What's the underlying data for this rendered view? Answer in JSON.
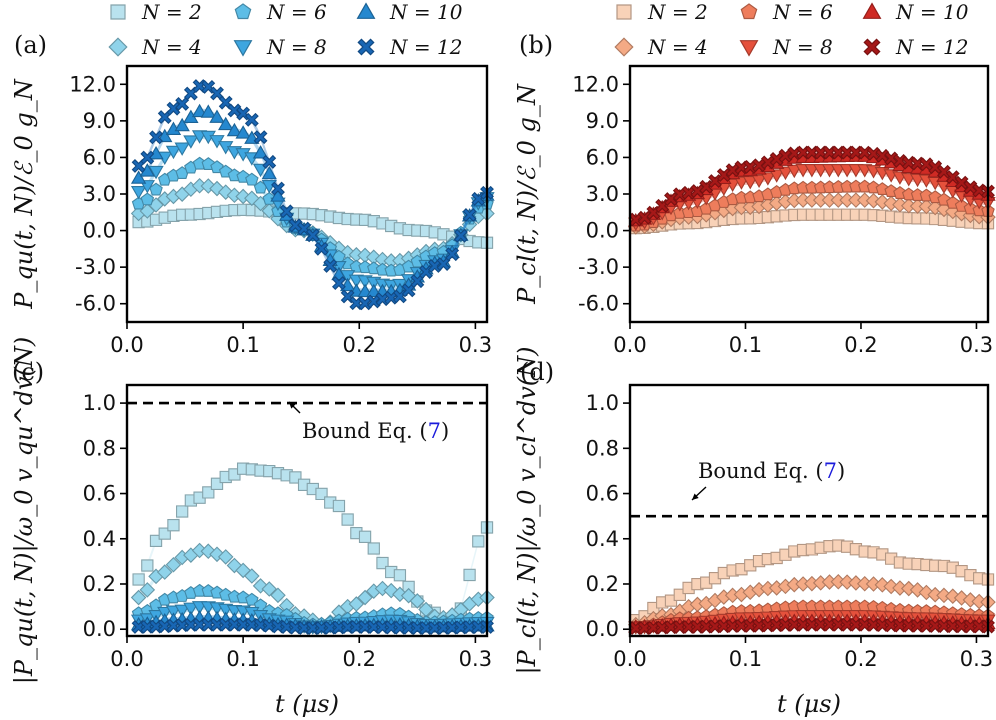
{
  "chart_data": [
    {
      "id": "a",
      "type": "scatter",
      "panel_label": "(a)",
      "ylabel": "P_qu(t, N)/ℰ_0 g_N",
      "xlabel": "",
      "xlim": [
        0,
        0.31
      ],
      "ylim": [
        -7.5,
        13.5
      ],
      "xticks": [
        "0.0",
        "0.1",
        "0.2",
        "0.3"
      ],
      "yticks": [
        "12.0",
        "9.0",
        "6.0",
        "3.0",
        "0.0",
        "-3.0",
        "-6.0"
      ],
      "legend": [
        "N = 2",
        "N = 4",
        "N = 6",
        "N = 8",
        "N = 10",
        "N = 12"
      ],
      "series": [
        {
          "name": "N = 2",
          "marker": "square",
          "color": "#b9e2ee",
          "x": [
            0.01,
            0.05,
            0.1,
            0.15,
            0.2,
            0.25,
            0.31
          ],
          "y": [
            0.7,
            1.3,
            1.7,
            1.4,
            0.9,
            0.0,
            -1.0
          ]
        },
        {
          "name": "N = 4",
          "marker": "diamond",
          "color": "#8fd3ea",
          "x": [
            0.01,
            0.04,
            0.065,
            0.1,
            0.15,
            0.2,
            0.23,
            0.27,
            0.31
          ],
          "y": [
            1.4,
            2.8,
            3.7,
            2.8,
            0.0,
            -2.0,
            -2.5,
            -1.5,
            1.4
          ]
        },
        {
          "name": "N = 6",
          "marker": "pentagon",
          "color": "#5dbde6",
          "x": [
            0.01,
            0.04,
            0.065,
            0.1,
            0.15,
            0.2,
            0.23,
            0.27,
            0.31
          ],
          "y": [
            2.2,
            4.5,
            5.5,
            4.4,
            0.1,
            -3.0,
            -3.3,
            -1.8,
            2.2
          ]
        },
        {
          "name": "N = 8",
          "marker": "triangle-down",
          "color": "#3ea6e0",
          "x": [
            0.01,
            0.04,
            0.065,
            0.1,
            0.15,
            0.2,
            0.23,
            0.27,
            0.31
          ],
          "y": [
            3.2,
            6.5,
            7.8,
            6.3,
            0.1,
            -4.1,
            -4.5,
            -2.4,
            2.7
          ]
        },
        {
          "name": "N = 10",
          "marker": "triangle-up",
          "color": "#2588cf",
          "x": [
            0.01,
            0.04,
            0.065,
            0.1,
            0.15,
            0.2,
            0.23,
            0.27,
            0.31
          ],
          "y": [
            4.3,
            8.3,
            9.8,
            8.0,
            0.1,
            -5.0,
            -5.0,
            -2.6,
            2.9
          ]
        },
        {
          "name": "N = 12",
          "marker": "x",
          "color": "#1866b4",
          "x": [
            0.01,
            0.04,
            0.065,
            0.1,
            0.15,
            0.2,
            0.23,
            0.27,
            0.31
          ],
          "y": [
            5.3,
            10.0,
            11.9,
            9.6,
            0.2,
            -6.0,
            -5.5,
            -2.8,
            3.1
          ]
        }
      ]
    },
    {
      "id": "b",
      "type": "scatter",
      "panel_label": "(b)",
      "ylabel": "P_cl(t, N)/ℰ_0 g_N",
      "xlabel": "",
      "xlim": [
        0,
        0.31
      ],
      "ylim": [
        -7.5,
        13.5
      ],
      "xticks": [
        "0.0",
        "0.1",
        "0.2",
        "0.3"
      ],
      "yticks": [
        "12.0",
        "9.0",
        "6.0",
        "3.0",
        "0.0",
        "-3.0",
        "-6.0"
      ],
      "legend": [
        "N = 2",
        "N = 4",
        "N = 6",
        "N = 8",
        "N = 10",
        "N = 12"
      ],
      "series": [
        {
          "name": "N = 2",
          "marker": "square",
          "color": "#f8d2b8",
          "x": [
            0.005,
            0.05,
            0.1,
            0.15,
            0.2,
            0.25,
            0.31
          ],
          "y": [
            0.2,
            0.6,
            1.0,
            1.3,
            1.3,
            1.0,
            0.6
          ]
        },
        {
          "name": "N = 4",
          "marker": "diamond",
          "color": "#f4aa85",
          "x": [
            0.005,
            0.05,
            0.1,
            0.15,
            0.2,
            0.25,
            0.31
          ],
          "y": [
            0.3,
            1.1,
            1.9,
            2.5,
            2.5,
            2.0,
            1.1
          ]
        },
        {
          "name": "N = 6",
          "marker": "pentagon",
          "color": "#ee7d5c",
          "x": [
            0.005,
            0.05,
            0.1,
            0.15,
            0.2,
            0.25,
            0.31
          ],
          "y": [
            0.4,
            1.5,
            2.7,
            3.5,
            3.6,
            2.9,
            1.6
          ]
        },
        {
          "name": "N = 8",
          "marker": "triangle-down",
          "color": "#e5513c",
          "x": [
            0.005,
            0.05,
            0.1,
            0.15,
            0.2,
            0.25,
            0.31
          ],
          "y": [
            0.6,
            2.3,
            4.0,
            5.0,
            5.0,
            4.2,
            2.3
          ]
        },
        {
          "name": "N = 10",
          "marker": "triangle-up",
          "color": "#cf2a24",
          "x": [
            0.005,
            0.05,
            0.1,
            0.15,
            0.2,
            0.25,
            0.31
          ],
          "y": [
            0.8,
            2.9,
            4.9,
            6.0,
            6.1,
            5.1,
            2.9
          ]
        },
        {
          "name": "N = 12",
          "marker": "x",
          "color": "#a51818",
          "x": [
            0.005,
            0.05,
            0.1,
            0.15,
            0.2,
            0.25,
            0.31
          ],
          "y": [
            0.9,
            3.1,
            5.2,
            6.4,
            6.4,
            5.5,
            3.2
          ]
        }
      ]
    },
    {
      "id": "c",
      "type": "scatter",
      "panel_label": "(c)",
      "ylabel": "|P_qu(t, N)|/ω_0 v_qu^dv(N)",
      "xlabel": "t (μs)",
      "xlim": [
        0,
        0.31
      ],
      "ylim": [
        -0.03,
        1.08
      ],
      "xticks": [
        "0.0",
        "0.1",
        "0.2",
        "0.3"
      ],
      "yticks": [
        "1.0",
        "0.8",
        "0.6",
        "0.4",
        "0.2",
        "0.0"
      ],
      "bound": {
        "y": 1.0,
        "label": "Bound Eq. (",
        "ref": "7",
        "label_end": ")"
      },
      "series": [
        {
          "name": "N = 2",
          "marker": "square",
          "color": "#b9e2ee",
          "x": [
            0.01,
            0.03,
            0.06,
            0.09,
            0.1,
            0.12,
            0.14,
            0.16,
            0.18,
            0.2,
            0.23,
            0.26,
            0.28,
            0.31
          ],
          "y": [
            0.22,
            0.42,
            0.58,
            0.68,
            0.71,
            0.7,
            0.68,
            0.62,
            0.55,
            0.42,
            0.25,
            0.08,
            0.03,
            0.45
          ]
        },
        {
          "name": "N = 4",
          "marker": "diamond",
          "color": "#8fd3ea",
          "x": [
            0.01,
            0.03,
            0.05,
            0.065,
            0.08,
            0.1,
            0.12,
            0.15,
            0.17,
            0.19,
            0.22,
            0.24,
            0.27,
            0.31
          ],
          "y": [
            0.14,
            0.25,
            0.32,
            0.35,
            0.33,
            0.26,
            0.18,
            0.06,
            0.02,
            0.1,
            0.18,
            0.15,
            0.05,
            0.14
          ]
        },
        {
          "name": "N = 6",
          "marker": "pentagon",
          "color": "#5dbde6",
          "x": [
            0.01,
            0.04,
            0.065,
            0.1,
            0.13,
            0.16,
            0.2,
            0.23,
            0.26,
            0.31
          ],
          "y": [
            0.07,
            0.14,
            0.17,
            0.14,
            0.07,
            0.02,
            0.05,
            0.07,
            0.03,
            0.05
          ]
        },
        {
          "name": "N = 8",
          "marker": "triangle-down",
          "color": "#3ea6e0",
          "x": [
            0.01,
            0.04,
            0.065,
            0.1,
            0.13,
            0.16,
            0.2,
            0.23,
            0.26,
            0.31
          ],
          "y": [
            0.04,
            0.08,
            0.1,
            0.08,
            0.04,
            0.01,
            0.03,
            0.04,
            0.02,
            0.03
          ]
        },
        {
          "name": "N = 10",
          "marker": "triangle-up",
          "color": "#2588cf",
          "x": [
            0.01,
            0.04,
            0.065,
            0.1,
            0.13,
            0.16,
            0.2,
            0.23,
            0.26,
            0.31
          ],
          "y": [
            0.02,
            0.04,
            0.05,
            0.04,
            0.02,
            0.01,
            0.015,
            0.02,
            0.01,
            0.015
          ]
        },
        {
          "name": "N = 12",
          "marker": "x",
          "color": "#1866b4",
          "x": [
            0.01,
            0.065,
            0.1,
            0.16,
            0.2,
            0.26,
            0.31
          ],
          "y": [
            0.01,
            0.02,
            0.02,
            0.005,
            0.01,
            0.005,
            0.01
          ]
        }
      ]
    },
    {
      "id": "d",
      "type": "scatter",
      "panel_label": "(d)",
      "ylabel": "|P_cl(t, N)|/ω_0 v_cl^dv(N)",
      "xlabel": "t (μs)",
      "xlim": [
        0,
        0.31
      ],
      "ylim": [
        -0.03,
        1.08
      ],
      "xticks": [
        "0.0",
        "0.1",
        "0.2",
        "0.3"
      ],
      "yticks": [
        "1.0",
        "0.8",
        "0.6",
        "0.4",
        "0.2",
        "0.0"
      ],
      "bound": {
        "y": 0.5,
        "label": "Bound Eq. (",
        "ref": "7",
        "label_end": ")"
      },
      "series": [
        {
          "name": "N = 2",
          "marker": "square",
          "color": "#f8d2b8",
          "x": [
            0.005,
            0.03,
            0.06,
            0.09,
            0.12,
            0.15,
            0.18,
            0.21,
            0.24,
            0.27,
            0.31
          ],
          "y": [
            0.04,
            0.12,
            0.2,
            0.26,
            0.31,
            0.35,
            0.37,
            0.34,
            0.29,
            0.28,
            0.22
          ]
        },
        {
          "name": "N = 4",
          "marker": "diamond",
          "color": "#f4aa85",
          "x": [
            0.005,
            0.03,
            0.06,
            0.09,
            0.12,
            0.15,
            0.18,
            0.21,
            0.24,
            0.27,
            0.31
          ],
          "y": [
            0.02,
            0.06,
            0.11,
            0.15,
            0.18,
            0.2,
            0.21,
            0.2,
            0.18,
            0.15,
            0.12
          ]
        },
        {
          "name": "N = 6",
          "marker": "pentagon",
          "color": "#ee7d5c",
          "x": [
            0.005,
            0.05,
            0.1,
            0.15,
            0.2,
            0.25,
            0.31
          ],
          "y": [
            0.01,
            0.05,
            0.08,
            0.1,
            0.1,
            0.08,
            0.06
          ]
        },
        {
          "name": "N = 8",
          "marker": "triangle-down",
          "color": "#e5513c",
          "x": [
            0.005,
            0.05,
            0.1,
            0.15,
            0.2,
            0.25,
            0.31
          ],
          "y": [
            0.01,
            0.03,
            0.05,
            0.06,
            0.06,
            0.05,
            0.04
          ]
        },
        {
          "name": "N = 10",
          "marker": "triangle-up",
          "color": "#cf2a24",
          "x": [
            0.005,
            0.05,
            0.1,
            0.15,
            0.2,
            0.25,
            0.31
          ],
          "y": [
            0.01,
            0.02,
            0.03,
            0.035,
            0.035,
            0.03,
            0.025
          ]
        },
        {
          "name": "N = 12",
          "marker": "x",
          "color": "#a51818",
          "x": [
            0.005,
            0.05,
            0.1,
            0.15,
            0.2,
            0.25,
            0.31
          ],
          "y": [
            0.005,
            0.01,
            0.015,
            0.02,
            0.02,
            0.015,
            0.012
          ]
        }
      ]
    }
  ]
}
